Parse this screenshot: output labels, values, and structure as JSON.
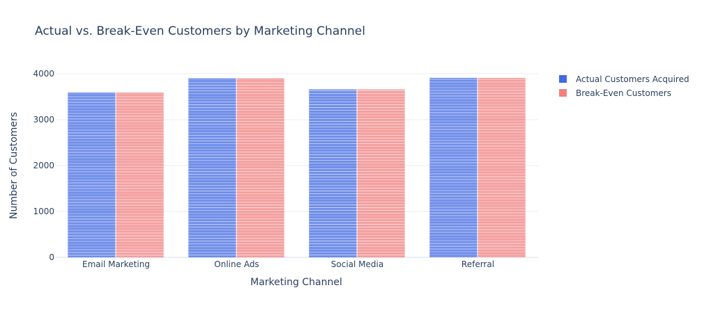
{
  "chart_data": {
    "type": "bar",
    "title": "Actual vs. Break-Even Customers by Marketing Channel",
    "xlabel": "Marketing Channel",
    "ylabel": "Number of Customers",
    "categories": [
      "Email Marketing",
      "Online Ads",
      "Social Media",
      "Referral"
    ],
    "series": [
      {
        "name": "Actual Customers Acquired",
        "values": [
          3590,
          3900,
          3660,
          3910
        ],
        "color": "#4169e1"
      },
      {
        "name": "Break-Even Customers",
        "values": [
          3590,
          3900,
          3660,
          3910
        ],
        "color": "#f08080"
      }
    ],
    "ylim": [
      0,
      4000
    ],
    "yticks": [
      0,
      1000,
      2000,
      3000,
      4000
    ],
    "yticklabels": [
      "0",
      "1000",
      "2000",
      "3000",
      "4000"
    ],
    "grid": true,
    "legend": "top-right"
  }
}
